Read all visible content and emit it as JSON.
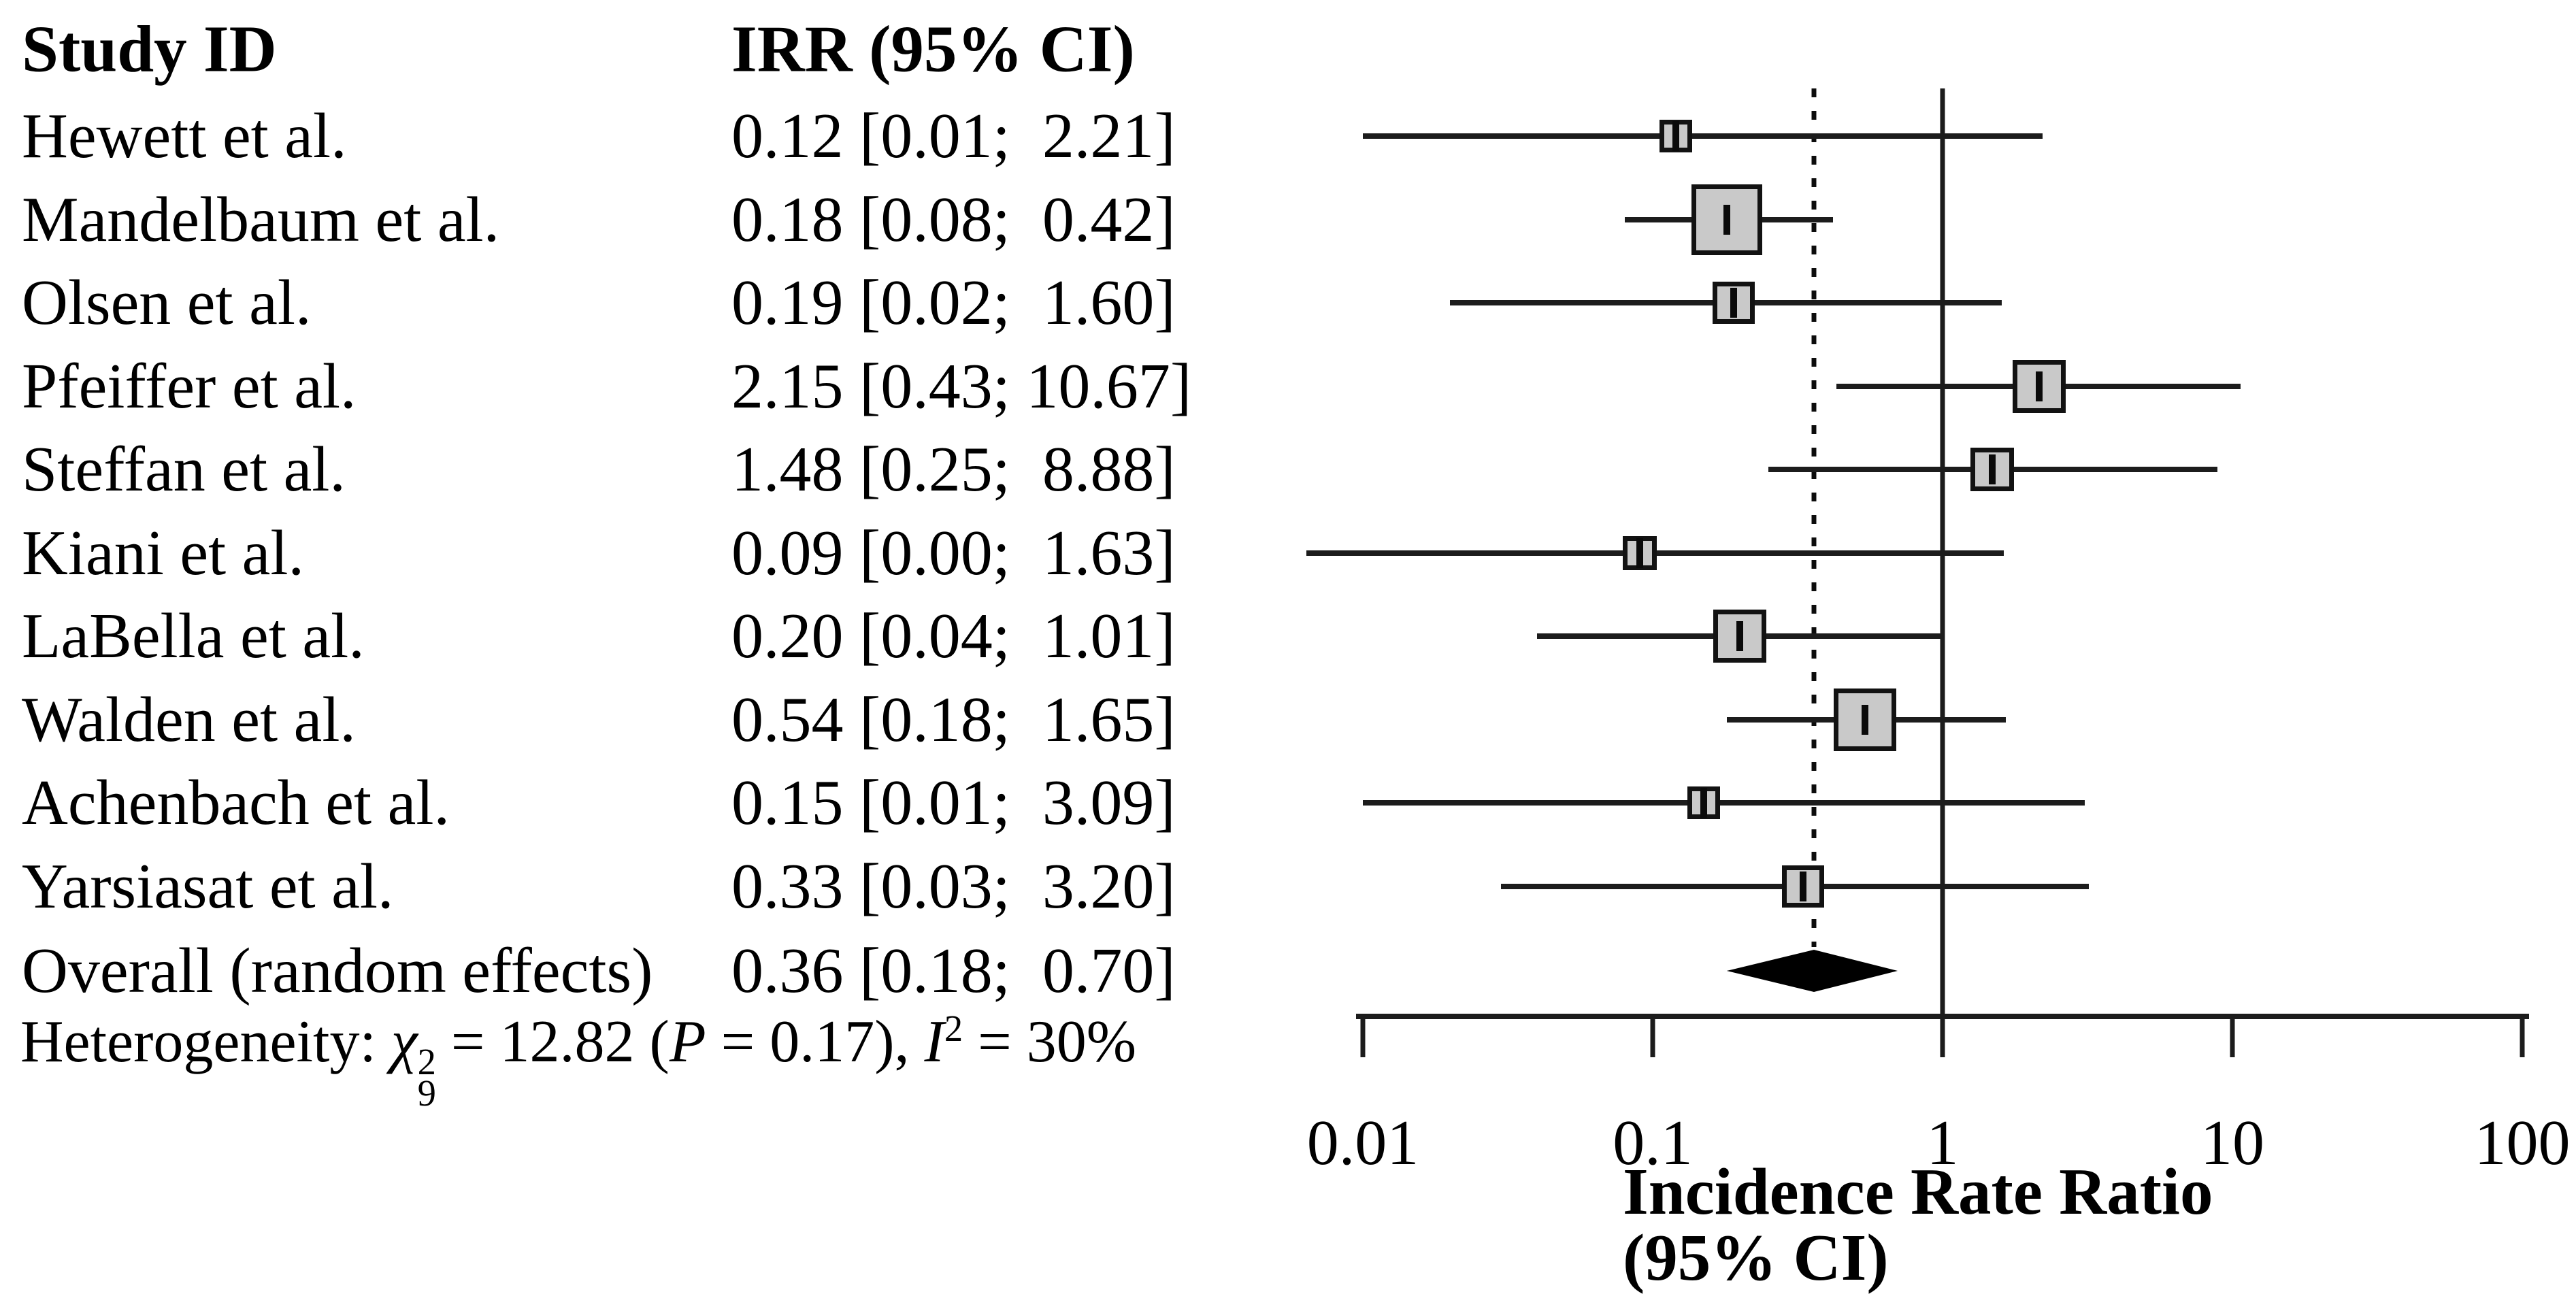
{
  "table": {
    "header": {
      "study": "Study ID",
      "irr": "IRR (95% CI)"
    },
    "heterogeneity": {
      "prefix": "Heterogeneity: ",
      "chi": "χ",
      "chi_sup": "2",
      "chi_sub": "9",
      "mid": " = 12.82 (",
      "p_italic": "P",
      "p_rest": " = 0.17), ",
      "i_italic": "I",
      "i_sup": "2",
      "suffix": " = 30%"
    }
  },
  "chart_data": {
    "type": "forest",
    "title": "",
    "xlabel": "Incidence Rate Ratio (95% CI)",
    "x_axis": {
      "scale": "log10",
      "ticks": [
        0.01,
        0.1,
        1,
        10,
        100
      ],
      "tick_labels": [
        "0.01",
        "0.1",
        "1",
        "10",
        "100"
      ],
      "range": [
        0.01,
        100
      ]
    },
    "reference_line_solid": 1,
    "reference_line_dashed": 0.36,
    "studies": [
      {
        "study": "Hewett et al.",
        "irr_text": "0.12 [0.01;  2.21]",
        "est": 0.12,
        "lo": 0.01,
        "hi": 2.21,
        "marker_px": 48
      },
      {
        "study": "Mandelbaum et al.",
        "irr_text": "0.18 [0.08;  0.42]",
        "est": 0.18,
        "lo": 0.08,
        "hi": 0.42,
        "marker_px": 104
      },
      {
        "study": "Olsen et al.",
        "irr_text": "0.19 [0.02;  1.60]",
        "est": 0.19,
        "lo": 0.02,
        "hi": 1.6,
        "marker_px": 62
      },
      {
        "study": "Pfeiffer et al.",
        "irr_text": "2.15 [0.43; 10.67]",
        "est": 2.15,
        "lo": 0.43,
        "hi": 10.67,
        "marker_px": 78
      },
      {
        "study": "Steffan et al.",
        "irr_text": "1.48 [0.25;  8.88]",
        "est": 1.48,
        "lo": 0.25,
        "hi": 8.88,
        "marker_px": 64
      },
      {
        "study": "Kiani et al.",
        "irr_text": "0.09 [0.00;  1.63]",
        "est": 0.09,
        "lo": 0.0,
        "hi": 1.63,
        "marker_px": 50
      },
      {
        "study": "LaBella et al.",
        "irr_text": "0.20 [0.04;  1.01]",
        "est": 0.2,
        "lo": 0.04,
        "hi": 1.01,
        "marker_px": 78
      },
      {
        "study": "Walden et al.",
        "irr_text": "0.54 [0.18;  1.65]",
        "est": 0.54,
        "lo": 0.18,
        "hi": 1.65,
        "marker_px": 92
      },
      {
        "study": "Achenbach et al.",
        "irr_text": "0.15 [0.01;  3.09]",
        "est": 0.15,
        "lo": 0.01,
        "hi": 3.09,
        "marker_px": 48
      },
      {
        "study": "Yarsiasat et al.",
        "irr_text": "0.33 [0.03;  3.20]",
        "est": 0.33,
        "lo": 0.03,
        "hi": 3.2,
        "marker_px": 62
      }
    ],
    "overall": {
      "study": "Overall (random effects)",
      "irr_text": "0.36 [0.18;  0.70]",
      "est": 0.36,
      "lo": 0.18,
      "hi": 0.7
    },
    "legend": null,
    "grid": false
  },
  "colors": {
    "marker_fill": "#c9c9c9",
    "marker_border": "#121212",
    "line": "#1c1c1c",
    "diamond": "#000000",
    "text": "#000000",
    "background": "#ffffff"
  }
}
